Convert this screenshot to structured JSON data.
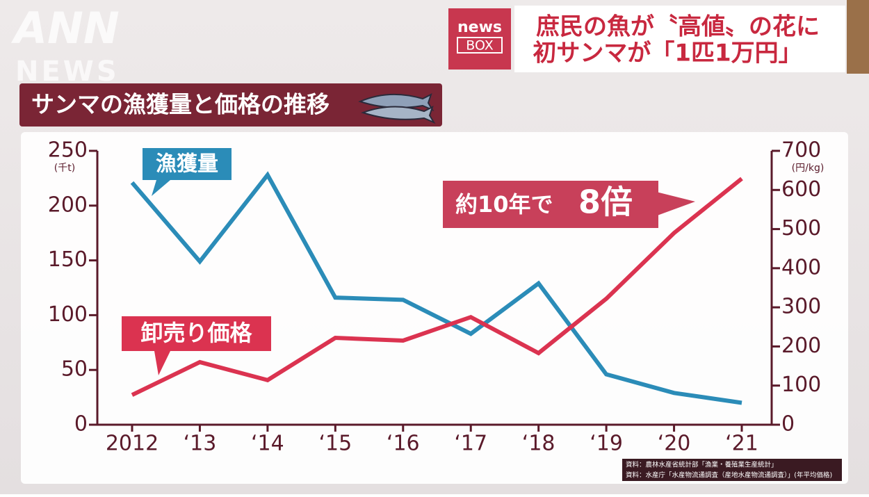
{
  "logo": {
    "ann": "ANN",
    "news": "NEWS"
  },
  "header": {
    "badge_top": "news",
    "badge_bottom": "BOX",
    "line1": "庶民の魚が〝高値〟の花に",
    "line2": "初サンマが「1匹1万円」"
  },
  "chart_data": {
    "type": "line",
    "title": "サンマの漁獲量と価格の推移",
    "categories": [
      "2012",
      "‘13",
      "‘14",
      "‘15",
      "‘16",
      "‘17",
      "‘18",
      "‘19",
      "‘20",
      "‘21"
    ],
    "series": [
      {
        "name": "漁獲量",
        "color": "#2b8cb8",
        "values": [
          221,
          149,
          228,
          116,
          114,
          83,
          129,
          46,
          29,
          20
        ]
      },
      {
        "name": "卸売り価格",
        "color": "#db3350",
        "axis": "y2",
        "values": [
          76,
          160,
          114,
          222,
          215,
          275,
          183,
          322,
          490,
          629
        ]
      }
    ],
    "ylim": [
      0,
      250
    ],
    "yticks": [
      0,
      50,
      100,
      150,
      200,
      250
    ],
    "y_unit": "(千t)",
    "y2lim": [
      0,
      700
    ],
    "y2ticks": [
      0,
      100,
      200,
      300,
      400,
      500,
      600,
      700
    ],
    "y2_unit": "(円/kg)",
    "annotation": {
      "text": "約10年で",
      "emphasis": "8倍"
    }
  },
  "sources": [
    "資料：農林水産省統計部「漁業・養殖業生産統計」",
    "資料：水産庁「水産物流通調査（産地水産物流通調査）」(年平均価格)"
  ]
}
